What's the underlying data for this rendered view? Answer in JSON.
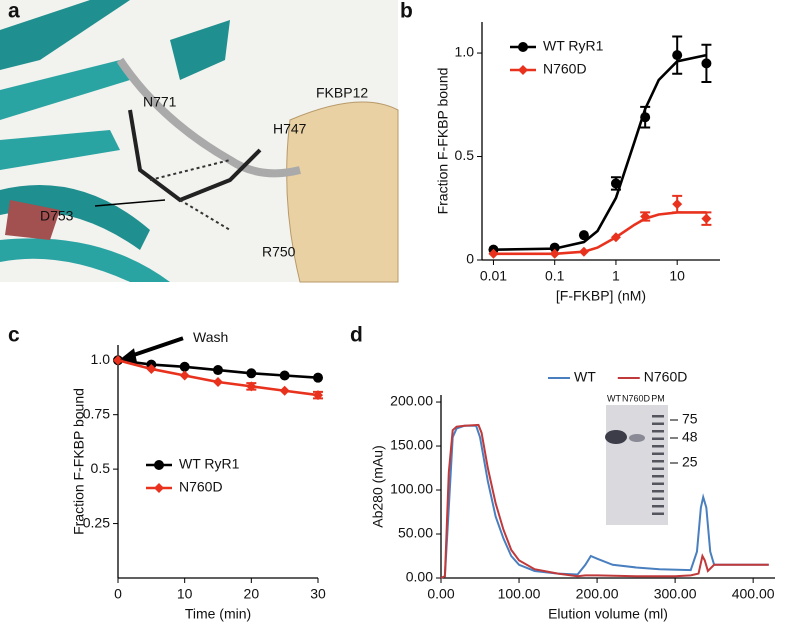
{
  "structure_panel": {
    "panel": "a",
    "labels": [
      "N771",
      "FKBP12",
      "H747",
      "D753",
      "R750"
    ]
  },
  "chart_data": [
    {
      "type": "line",
      "panel": "b",
      "xscale": "log",
      "xlabel": "[F-FKBP] (nM)",
      "ylabel": "Fraction F-FKBP bound",
      "x": [
        0.01,
        0.1,
        0.3,
        1,
        3,
        10,
        30
      ],
      "xlim": [
        0.0065,
        50
      ],
      "xticks": [
        0.01,
        0.1,
        1,
        10
      ],
      "ylim": [
        0,
        1.15
      ],
      "yticks": [
        0,
        0.5,
        {
          "value": 1,
          "label": "1.0"
        }
      ],
      "legend": "upper left",
      "series": [
        {
          "name": "WT RyR1",
          "color": "#000000",
          "marker": "circle",
          "values": [
            0.05,
            0.06,
            0.12,
            0.37,
            0.69,
            0.99,
            0.95
          ],
          "errors": [
            null,
            null,
            null,
            0.03,
            0.05,
            0.09,
            0.09
          ],
          "fit": {
            "x": [
              0.01,
              0.1,
              0.3,
              0.5,
              1,
              2,
              3,
              5,
              10,
              30
            ],
            "values": [
              0.05,
              0.055,
              0.087,
              0.14,
              0.3,
              0.57,
              0.73,
              0.87,
              0.96,
              0.99
            ]
          }
        },
        {
          "name": "N760D",
          "color": "#e8321e",
          "marker": "diamond",
          "values": [
            0.03,
            0.03,
            0.04,
            0.11,
            0.21,
            0.27,
            0.2
          ],
          "errors": [
            null,
            null,
            null,
            null,
            0.02,
            0.04,
            0.03
          ],
          "fit": {
            "x": [
              0.01,
              0.1,
              0.3,
              0.5,
              1,
              2,
              3,
              5,
              10,
              30
            ],
            "values": [
              0.03,
              0.03,
              0.04,
              0.06,
              0.11,
              0.17,
              0.2,
              0.22,
              0.23,
              0.23
            ]
          }
        }
      ]
    },
    {
      "type": "line",
      "panel": "c",
      "xlabel": "Time (min)",
      "ylabel": "Fraction F-FKBP bound",
      "annotation": "Wash",
      "x": [
        0,
        5,
        10,
        15,
        20,
        25,
        30
      ],
      "xlim": [
        0,
        30
      ],
      "xticks": [
        0,
        10,
        20,
        30
      ],
      "ylim": [
        0,
        1.07
      ],
      "yticks": [
        0.25,
        0.5,
        0.75,
        {
          "value": 1,
          "label": "1.0"
        }
      ],
      "legend": "lower left",
      "series": [
        {
          "name": "WT RyR1",
          "color": "#000000",
          "marker": "circle",
          "values": [
            1.0,
            0.98,
            0.97,
            0.955,
            0.94,
            0.93,
            0.92
          ],
          "errors": [
            null,
            null,
            null,
            null,
            null,
            null,
            null
          ]
        },
        {
          "name": "N760D",
          "color": "#e8321e",
          "marker": "diamond",
          "values": [
            1.0,
            0.96,
            0.93,
            0.9,
            0.88,
            0.86,
            0.84
          ],
          "errors": [
            null,
            null,
            null,
            null,
            0.015,
            null,
            0.015
          ]
        }
      ]
    },
    {
      "type": "line",
      "panel": "d",
      "xlabel": "Elution volume (ml)",
      "ylabel": "Ab280 (mAu)",
      "xlim": [
        0,
        428
      ],
      "xticks": [
        {
          "value": 0,
          "label": "0.00"
        },
        {
          "value": 100,
          "label": "100.00"
        },
        {
          "value": 200,
          "label": "200.00"
        },
        {
          "value": 300,
          "label": "300.00"
        },
        {
          "value": 400,
          "label": "400.00"
        }
      ],
      "ylim": [
        0,
        208
      ],
      "yticks": [
        {
          "value": 0,
          "label": "0.00"
        },
        {
          "value": 50,
          "label": "50.00"
        },
        {
          "value": 100,
          "label": "100.00"
        },
        {
          "value": 150,
          "label": "150.00"
        },
        {
          "value": 200,
          "label": "200.00"
        }
      ],
      "legend": "top",
      "inset": {
        "lanes": [
          "WT",
          "N760D",
          "PM"
        ],
        "markers": [
          75,
          48,
          25
        ]
      },
      "series": [
        {
          "name": "WT",
          "color": "#4a7fbf",
          "x": [
            0,
            5,
            10,
            15,
            20,
            30,
            45,
            50,
            60,
            70,
            80,
            90,
            100,
            120,
            150,
            175,
            185,
            192,
            200,
            220,
            250,
            280,
            320,
            328,
            333,
            336,
            340,
            345,
            350,
            380,
            420
          ],
          "values": [
            0,
            2,
            80,
            160,
            170,
            173,
            173,
            160,
            110,
            70,
            45,
            25,
            15,
            8,
            5,
            4,
            15,
            25,
            22,
            15,
            12,
            10,
            9,
            30,
            80,
            92,
            80,
            30,
            15,
            15,
            15
          ]
        },
        {
          "name": "N760D",
          "color": "#c0393b",
          "x": [
            0,
            5,
            10,
            15,
            20,
            30,
            48,
            52,
            60,
            70,
            80,
            90,
            100,
            120,
            150,
            175,
            185,
            200,
            250,
            300,
            320,
            330,
            335,
            338,
            342,
            350,
            380,
            420
          ],
          "values": [
            0,
            2,
            120,
            168,
            172,
            173,
            174,
            165,
            125,
            85,
            55,
            32,
            20,
            10,
            5,
            2,
            3,
            3,
            2,
            2,
            3,
            5,
            25,
            20,
            8,
            15,
            15,
            15
          ]
        }
      ]
    }
  ]
}
